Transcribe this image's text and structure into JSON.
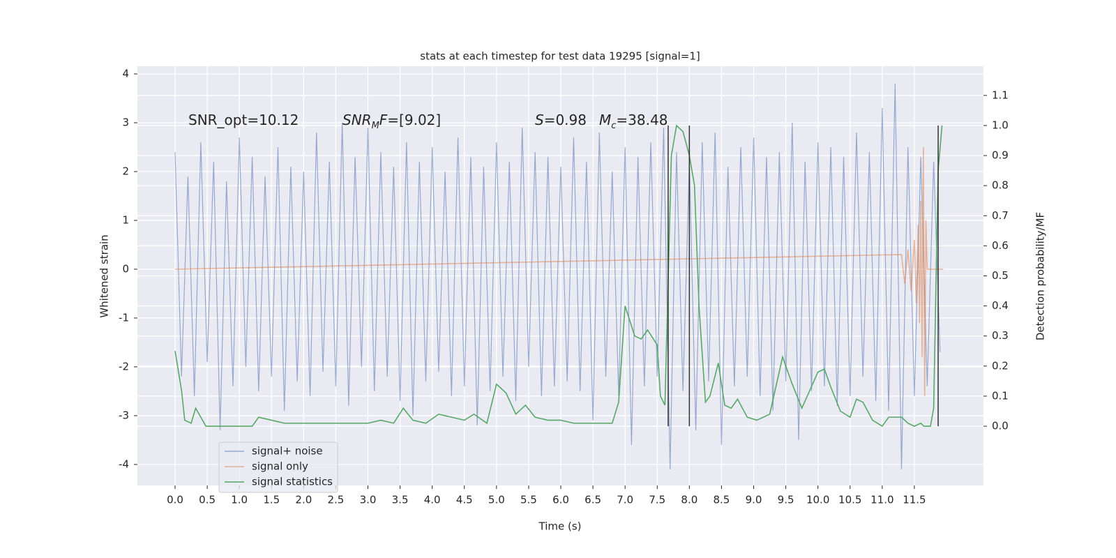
{
  "chart_data": {
    "type": "line",
    "title": "stats at each timestep for test data 19295 [signal=1]",
    "xlabel": "Time (s)",
    "ylabel": "Whitened strain",
    "y2label": "Detection probability/MF",
    "xlim": [
      -0.586,
      12.575
    ],
    "ylim": [
      -4.43,
      4.157
    ],
    "y2lim": [
      -0.197,
      1.197
    ],
    "xticks": [
      {
        "value": 0,
        "label": "0.0"
      },
      0.5,
      {
        "value": 1,
        "label": "1.0"
      },
      1.5,
      {
        "value": 2,
        "label": "2.0"
      },
      2.5,
      {
        "value": 3,
        "label": "3.0"
      },
      3.5,
      {
        "value": 4,
        "label": "4.0"
      },
      4.5,
      {
        "value": 5,
        "label": "5.0"
      },
      5.5,
      {
        "value": 6,
        "label": "6.0"
      },
      6.5,
      {
        "value": 7,
        "label": "7.0"
      },
      7.5,
      {
        "value": 8,
        "label": "8.0"
      },
      8.5,
      {
        "value": 9,
        "label": "9.0"
      },
      9.5,
      {
        "value": 10,
        "label": "10.0"
      },
      10.5,
      {
        "value": 11,
        "label": "11.0"
      },
      11.5
    ],
    "yticks": [
      -4,
      -3,
      -2,
      -1,
      0,
      1,
      2,
      3,
      4
    ],
    "y2ticks": [
      {
        "value": 0,
        "label": "0.0"
      },
      0.1,
      0.2,
      0.3,
      0.4,
      0.5,
      0.6,
      0.7,
      0.8,
      0.9,
      {
        "value": 1,
        "label": "1.0"
      },
      1.1
    ],
    "grid": true,
    "legend": "lower left",
    "series": [
      {
        "name": "signal+ noise",
        "color": "#4c72b0",
        "x": [
          0,
          0.1,
          0.2,
          0.3,
          0.4,
          0.5,
          0.6,
          0.7,
          0.8,
          0.9,
          1,
          1.1,
          1.2,
          1.3,
          1.4,
          1.5,
          1.6,
          1.7,
          1.8,
          1.9,
          2,
          2.1,
          2.2,
          2.3,
          2.4,
          2.5,
          2.6,
          2.7,
          2.8,
          2.9,
          3,
          3.1,
          3.2,
          3.3,
          3.4,
          3.5,
          3.6,
          3.7,
          3.8,
          3.9,
          4,
          4.1,
          4.2,
          4.3,
          4.4,
          4.5,
          4.6,
          4.7,
          4.8,
          4.9,
          5,
          5.1,
          5.2,
          5.3,
          5.4,
          5.5,
          5.6,
          5.7,
          5.8,
          5.9,
          6,
          6.1,
          6.2,
          6.3,
          6.4,
          6.5,
          6.6,
          6.7,
          6.8,
          6.9,
          7,
          7.1,
          7.2,
          7.3,
          7.4,
          7.5,
          7.6,
          7.7,
          7.8,
          7.9,
          8,
          8.1,
          8.2,
          8.3,
          8.4,
          8.5,
          8.6,
          8.7,
          8.8,
          8.9,
          9,
          9.1,
          9.2,
          9.3,
          9.4,
          9.5,
          9.6,
          9.7,
          9.8,
          9.9,
          10,
          10.1,
          10.2,
          10.3,
          10.4,
          10.5,
          10.6,
          10.7,
          10.8,
          10.9,
          11,
          11.1,
          11.2,
          11.3,
          11.4,
          11.5,
          11.6,
          11.7,
          11.8,
          11.9
        ],
        "values": [
          2.4,
          -2.2,
          1.9,
          -2.6,
          2.6,
          -1.9,
          2.2,
          -3.3,
          1.8,
          -2.4,
          2.7,
          -2.0,
          2.3,
          -2.5,
          1.9,
          -2.2,
          2.5,
          -2.9,
          2.1,
          -2.3,
          2.0,
          -2.6,
          2.8,
          -2.1,
          2.2,
          -2.4,
          3.0,
          -2.8,
          2.3,
          -2.0,
          2.9,
          -2.5,
          2.4,
          -2.2,
          2.1,
          -2.7,
          2.6,
          -3.0,
          2.2,
          -2.3,
          2.5,
          -2.1,
          2.0,
          -2.6,
          2.7,
          -2.4,
          2.3,
          -3.2,
          2.1,
          -2.5,
          2.6,
          -2.2,
          2.2,
          -2.7,
          2.9,
          -2.0,
          2.4,
          -2.6,
          2.3,
          -2.4,
          2.1,
          -2.3,
          2.7,
          -2.5,
          2.2,
          -3.1,
          2.8,
          -2.2,
          2.0,
          -2.6,
          2.5,
          -3.6,
          2.3,
          -2.4,
          2.6,
          -2.2,
          2.9,
          -4.1,
          2.4,
          -2.5,
          2.2,
          -3.3,
          2.6,
          -2.3,
          2.8,
          -3.6,
          2.1,
          -2.4,
          2.5,
          -2.2,
          2.7,
          -2.6,
          2.3,
          -2.9,
          2.4,
          -2.3,
          3.0,
          -3.5,
          2.2,
          -2.5,
          2.6,
          -2.4,
          2.5,
          -2.8,
          2.3,
          -2.6,
          2.8,
          -2.2,
          2.4,
          -2.7,
          3.3,
          -2.9,
          3.8,
          -4.1,
          2.5,
          -2.6,
          2.3,
          -2.4,
          2.2,
          -1.7
        ]
      },
      {
        "name": "signal only",
        "color": "#dd8452",
        "x": [
          0,
          11.3,
          11.35,
          11.4,
          11.45,
          11.5,
          11.53,
          11.56,
          11.58,
          11.6,
          11.62,
          11.64,
          11.66,
          11.68,
          11.7,
          11.95
        ],
        "values": [
          0,
          0.3,
          -0.3,
          0.4,
          -0.45,
          0.6,
          -0.7,
          0.9,
          -1.1,
          1.4,
          -1.8,
          2.5,
          -2.6,
          1.0,
          0,
          0
        ]
      },
      {
        "name": "signal statistics",
        "color": "#55a868",
        "axis": "y2",
        "x": [
          0,
          0.1,
          0.15,
          0.25,
          0.32,
          0.4,
          0.48,
          0.6,
          0.8,
          1.0,
          1.2,
          1.3,
          1.5,
          1.7,
          2.0,
          2.5,
          3.0,
          3.2,
          3.4,
          3.55,
          3.7,
          3.9,
          4.1,
          4.3,
          4.5,
          4.65,
          4.85,
          5.0,
          5.15,
          5.3,
          5.45,
          5.6,
          5.8,
          6.0,
          6.2,
          6.5,
          6.8,
          6.9,
          7.0,
          7.15,
          7.25,
          7.35,
          7.5,
          7.55,
          7.62,
          7.72,
          7.8,
          7.9,
          8.0,
          8.08,
          8.15,
          8.25,
          8.32,
          8.45,
          8.55,
          8.65,
          8.75,
          8.9,
          9.05,
          9.25,
          9.45,
          9.6,
          9.75,
          10.0,
          10.1,
          10.2,
          10.35,
          10.5,
          10.6,
          10.7,
          10.85,
          11.0,
          11.1,
          11.3,
          11.4,
          11.5,
          11.6,
          11.65,
          11.75,
          11.8,
          11.87,
          11.93
        ],
        "values": [
          0.25,
          0.12,
          0.02,
          0.01,
          0.06,
          0.03,
          0.0,
          0.0,
          0.0,
          0.0,
          0.0,
          0.03,
          0.02,
          0.01,
          0.01,
          0.01,
          0.01,
          0.02,
          0.01,
          0.06,
          0.02,
          0.01,
          0.04,
          0.03,
          0.02,
          0.04,
          0.01,
          0.14,
          0.11,
          0.04,
          0.07,
          0.03,
          0.02,
          0.02,
          0.01,
          0.01,
          0.01,
          0.08,
          0.4,
          0.3,
          0.29,
          0.32,
          0.27,
          0.1,
          0.07,
          0.9,
          1.0,
          0.98,
          0.9,
          0.8,
          0.4,
          0.08,
          0.1,
          0.21,
          0.07,
          0.06,
          0.09,
          0.03,
          0.02,
          0.04,
          0.23,
          0.14,
          0.06,
          0.18,
          0.19,
          0.13,
          0.05,
          0.03,
          0.09,
          0.08,
          0.02,
          0.0,
          0.03,
          0.03,
          0.01,
          0.0,
          0.01,
          0.0,
          0.0,
          0.06,
          0.85,
          1.0
        ]
      }
    ],
    "vlines": {
      "x": [
        7.67,
        8.0,
        11.87
      ],
      "range": [
        0,
        1
      ],
      "color": "#333333"
    },
    "annotations": [
      [
        {
          "text": "SNR_opt=10.12"
        }
      ],
      [
        {
          "text": "SNR",
          "style": "italic"
        },
        {
          "text": "M",
          "style": "sub"
        },
        {
          "text": "F",
          "style": "italic"
        },
        {
          "text": "=[9.02]"
        }
      ],
      [
        {
          "text": "S",
          "style": "italic"
        },
        {
          "text": "=0.98"
        }
      ],
      [
        {
          "text": "M",
          "style": "italic"
        },
        {
          "text": "c",
          "style": "sub"
        },
        {
          "text": "=38.48"
        }
      ]
    ]
  }
}
